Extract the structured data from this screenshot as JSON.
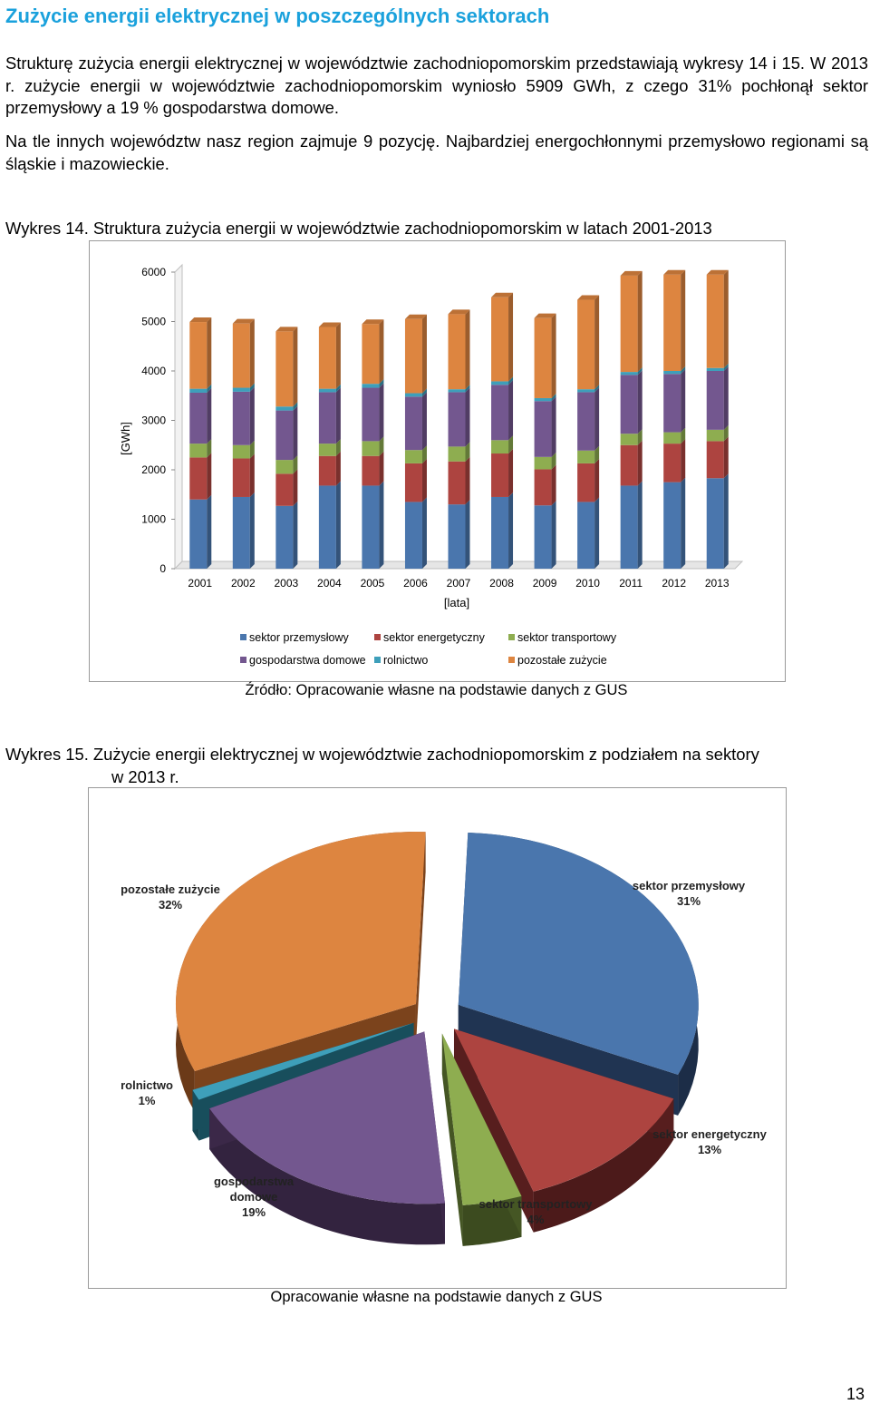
{
  "heading": "Zużycie energii elektrycznej w poszczególnych sektorach",
  "paragraphs": [
    "Strukturę zużycia energii elektrycznej w województwie zachodniopomorskim przedstawiają wykresy 14 i 15. W 2013 r. zużycie energii w województwie zachodniopomorskim wyniosło 5909 GWh, z czego 31% pochłonął sektor przemysłowy a 19 % gospodarstwa domowe.",
    "Na tle innych województw nasz region zajmuje 9 pozycję. Najbardziej energochłonnymi przemysłowo regionami są śląskie i mazowieckie."
  ],
  "figure14": {
    "caption": "Wykres 14. Struktura zużycia energii w województwie zachodniopomorskim w latach 2001-2013",
    "source": "Źródło: Opracowanie własne na podstawie danych z GUS"
  },
  "figure15": {
    "caption_line1": "Wykres 15. Zużycie energii elektrycznej w województwie zachodniopomorskim z podziałem na sektory",
    "caption_line2": "w 2013 r.",
    "source": "Opracowanie własne na podstawie danych z GUS"
  },
  "page_number": "13",
  "chart_data": [
    {
      "type": "bar",
      "stacked": true,
      "categories": [
        "2001",
        "2002",
        "2003",
        "2004",
        "2005",
        "2006",
        "2007",
        "2008",
        "2009",
        "2010",
        "2011",
        "2012",
        "2013"
      ],
      "xlabel": "[lata]",
      "ylabel": "[GWh]",
      "ylim": [
        0,
        6000
      ],
      "yticks": [
        "0",
        "1000",
        "2000",
        "3000",
        "4000",
        "5000",
        "6000"
      ],
      "legend_position": "bottom",
      "series": [
        {
          "name": "sektor przemysłowy",
          "color": "#4a76ad",
          "values": [
            1400,
            1450,
            1270,
            1680,
            1680,
            1350,
            1300,
            1450,
            1280,
            1350,
            1680,
            1750,
            1830
          ]
        },
        {
          "name": "sektor energetyczny",
          "color": "#ad4440",
          "values": [
            850,
            780,
            650,
            600,
            600,
            780,
            870,
            880,
            730,
            780,
            820,
            780,
            750
          ]
        },
        {
          "name": "sektor transportowy",
          "color": "#8ead50",
          "values": [
            280,
            270,
            280,
            250,
            300,
            270,
            300,
            270,
            250,
            260,
            230,
            230,
            230
          ]
        },
        {
          "name": "gospodarstwa domowe",
          "color": "#73578f",
          "values": [
            1030,
            1080,
            1000,
            1040,
            1080,
            1080,
            1100,
            1120,
            1130,
            1180,
            1190,
            1180,
            1190
          ]
        },
        {
          "name": "rolnictwo",
          "color": "#3e9fba",
          "values": [
            80,
            80,
            80,
            70,
            80,
            70,
            60,
            70,
            60,
            60,
            60,
            60,
            60
          ]
        },
        {
          "name": "pozostałe zużycie",
          "color": "#dd8540",
          "values": [
            1350,
            1300,
            1520,
            1250,
            1210,
            1500,
            1520,
            1700,
            1620,
            1810,
            1950,
            1950,
            1890
          ]
        }
      ]
    },
    {
      "type": "pie",
      "three_d": true,
      "exploded": true,
      "slices": [
        {
          "name": "sektor przemysłowy",
          "value": 31,
          "label": "31%",
          "color": "#4a76ad",
          "side": "#1c2d47"
        },
        {
          "name": "sektor energetyczny",
          "value": 13,
          "label": "13%",
          "color": "#ad4440",
          "side": "#4c1a1a"
        },
        {
          "name": "sektor transportowy",
          "value": 4,
          "label": "4%",
          "color": "#8ead50",
          "side": "#3c4b1f"
        },
        {
          "name": "gospodarstwa domowe",
          "value": 19,
          "label": "19%",
          "color": "#73578f",
          "side": "#33233f"
        },
        {
          "name": "rolnictwo",
          "value": 1,
          "label": "1%",
          "color": "#3e9fba",
          "side": "#154450"
        },
        {
          "name": "pozostałe zużycie",
          "value": 32,
          "label": "32%",
          "color": "#dd8540",
          "side": "#6b3a18"
        }
      ],
      "label_lines": {
        "sektor przemysłowy": [
          "sektor przemysłowy",
          "31%"
        ],
        "sektor energetyczny": [
          "sektor energetyczny",
          "13%"
        ],
        "sektor transportowy": [
          "sektor transportowy",
          "4%"
        ],
        "gospodarstwa domowe": [
          "gospodarstwa",
          "domowe",
          "19%"
        ],
        "rolnictwo": [
          "rolnictwo",
          "1%"
        ],
        "pozostałe zużycie": [
          "pozostałe zużycie",
          "32%"
        ]
      }
    }
  ]
}
